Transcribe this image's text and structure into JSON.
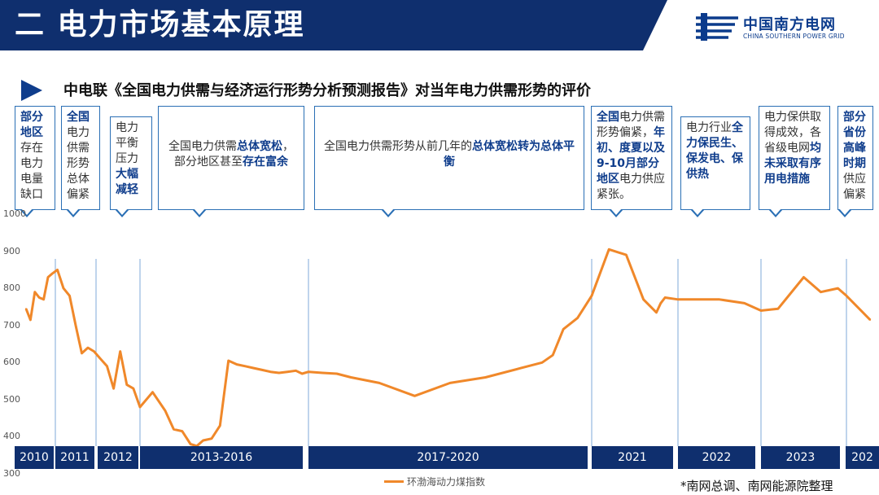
{
  "header": {
    "title": "二 电力市场基本原理"
  },
  "logo": {
    "cn": "中国南方电网",
    "en": "CHINA SOUTHERN POWER GRID"
  },
  "subtitle": "中电联《全国电力供需与经济运行形势分析预测报告》对当年电力供需形势的评价",
  "callouts": [
    {
      "segments": [
        {
          "t": "部分地区",
          "b": true
        },
        {
          "t": "存在电力电量缺口",
          "b": false
        }
      ]
    },
    {
      "segments": [
        {
          "t": "全国",
          "b": true
        },
        {
          "t": "电力供需形势总体偏紧",
          "b": false
        }
      ]
    },
    {
      "segments": [
        {
          "t": "电力平衡压力",
          "b": false
        },
        {
          "t": "大幅减轻",
          "b": true
        }
      ]
    },
    {
      "segments": [
        {
          "t": "全国电力供需",
          "b": false
        },
        {
          "t": "总体宽松",
          "b": true
        },
        {
          "t": "，部分地区甚至",
          "b": false
        },
        {
          "t": "存在富余",
          "b": true
        }
      ]
    },
    {
      "segments": [
        {
          "t": "全国电力供需形势从前几年的",
          "b": false
        },
        {
          "t": "总体宽松转为总体平衡",
          "b": true
        }
      ]
    },
    {
      "segments": [
        {
          "t": "全国",
          "b": true
        },
        {
          "t": "电力供需形势偏紧，",
          "b": false
        },
        {
          "t": "年初、度夏以及9-10月部分地区",
          "b": true
        },
        {
          "t": "电力供应紧张。",
          "b": false
        }
      ]
    },
    {
      "segments": [
        {
          "t": "电力行业",
          "b": false
        },
        {
          "t": "全力保民生、保发电、保供热",
          "b": true
        }
      ]
    },
    {
      "segments": [
        {
          "t": "电力保供取得成效，各省级电网",
          "b": false
        },
        {
          "t": "均未采取有序用电措施",
          "b": true
        }
      ]
    },
    {
      "segments": [
        {
          "t": "部分省份高峰时期",
          "b": true
        },
        {
          "t": "供应偏紧",
          "b": false
        }
      ]
    }
  ],
  "periods": [
    "2010",
    "2011",
    "2012",
    "2013-2016",
    "2017-2020",
    "2021",
    "2022",
    "2023",
    "202"
  ],
  "footnote": "*南网总调、南网能源院整理",
  "colors": {
    "navy": "#0f2f6e",
    "line": "#f0882a",
    "callout_border": "#2a6fb5"
  },
  "chart_data": {
    "type": "line",
    "title": "",
    "xlabel": "",
    "ylabel": "",
    "ylim": [
      300,
      1000
    ],
    "yticks": [
      "1000",
      "900",
      "800",
      "700",
      "600",
      "500",
      "400",
      "300"
    ],
    "x_range": [
      "2010",
      "2024"
    ],
    "grid": false,
    "legend_position": "bottom-center",
    "series": [
      {
        "name": "环渤海动力煤指数",
        "x": [
          2010.0,
          2010.15,
          2010.3,
          2010.45,
          2010.6,
          2010.75,
          2010.9,
          2011.05,
          2011.2,
          2011.35,
          2011.5,
          2011.65,
          2011.8,
          2011.95,
          2012.1,
          2012.25,
          2012.4,
          2012.55,
          2012.7,
          2012.85,
          2013.0,
          2013.3,
          2013.6,
          2013.8,
          2014.0,
          2014.2,
          2014.35,
          2014.5,
          2014.7,
          2014.9,
          2015.1,
          2015.3,
          2015.5,
          2015.7,
          2015.9,
          2016.1,
          2016.3,
          2016.5,
          2016.7,
          2016.85,
          2017.0,
          2017.2,
          2017.4,
          2017.6,
          2018.0,
          2018.5,
          2019.0,
          2019.5,
          2020.0,
          2020.3,
          2020.45,
          2020.6,
          2020.8,
          2021.0,
          2021.2,
          2021.4,
          2021.6,
          2021.75,
          2021.8,
          2021.85,
          2022.0,
          2022.2,
          2022.5,
          2022.8,
          2023.0,
          2023.2,
          2023.5,
          2023.7,
          2023.9,
          2024.0,
          2024.1
        ],
        "values": [
          745,
          715,
          790,
          775,
          770,
          830,
          840,
          850,
          800,
          780,
          700,
          625,
          640,
          630,
          610,
          590,
          530,
          630,
          540,
          530,
          480,
          520,
          470,
          420,
          415,
          380,
          375,
          390,
          395,
          430,
          605,
          595,
          590,
          585,
          580,
          575,
          572,
          575,
          578,
          570,
          575,
          572,
          570,
          560,
          545,
          510,
          545,
          560,
          585,
          600,
          620,
          690,
          720,
          780,
          905,
          890,
          770,
          735,
          760,
          775,
          770,
          770,
          770,
          760,
          740,
          745,
          830,
          790,
          800,
          780,
          715
        ]
      }
    ]
  }
}
